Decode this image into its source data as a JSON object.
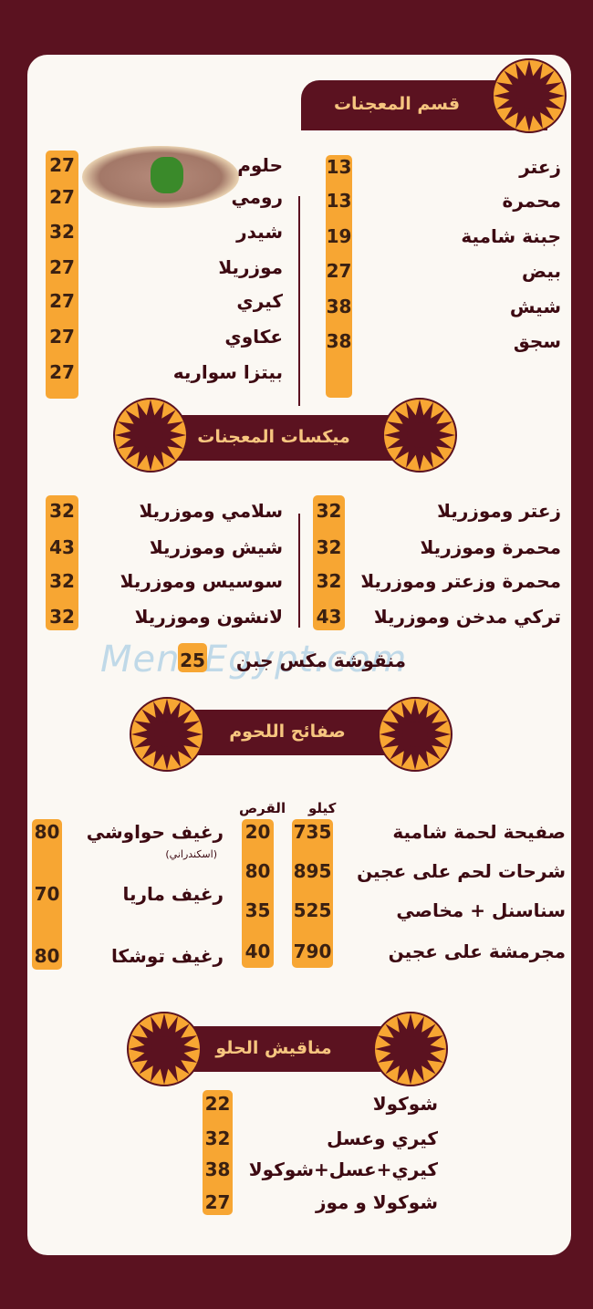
{
  "colors": {
    "background": "#5b1220",
    "accent": "#f7a633",
    "header_text": "#f6c57f",
    "card": "#fbf8f3"
  },
  "watermark": "MenuEgypt.com",
  "sections": {
    "pastries": {
      "title": "قسم المعجنات",
      "right": [
        {
          "name": "زعتر",
          "price": "13"
        },
        {
          "name": "محمرة",
          "price": "13"
        },
        {
          "name": "جبنة شامية",
          "price": "19"
        },
        {
          "name": "بيض",
          "price": "27"
        },
        {
          "name": "شيش",
          "price": "38"
        },
        {
          "name": "سجق",
          "price": "38"
        }
      ],
      "left": [
        {
          "name": "حلوم",
          "price": "27"
        },
        {
          "name": "رومي",
          "price": "27"
        },
        {
          "name": "شيدر",
          "price": "32"
        },
        {
          "name": "موزريلا",
          "price": "27"
        },
        {
          "name": "كيري",
          "price": "27"
        },
        {
          "name": "عكاوي",
          "price": "27"
        },
        {
          "name": "بيتزا سواريه",
          "price": "27"
        }
      ]
    },
    "mixes": {
      "title": "ميكسات المعجنات",
      "right": [
        {
          "name": "زعتر وموزريلا",
          "price": "32"
        },
        {
          "name": "محمرة وموزريلا",
          "price": "32"
        },
        {
          "name": "محمرة وزعتر وموزريلا",
          "price": "32"
        },
        {
          "name": "تركي مدخن وموزريلا",
          "price": "43"
        }
      ],
      "left": [
        {
          "name": "سلامي وموزريلا",
          "price": "32"
        },
        {
          "name": "شيش وموزريلا",
          "price": "43"
        },
        {
          "name": "سوسيس وموزريلا",
          "price": "32"
        },
        {
          "name": "لانشون وموزريلا",
          "price": "32"
        }
      ],
      "extra": {
        "name": "منقوشة مكس جبن",
        "price": "25"
      }
    },
    "meat": {
      "title": "صفائح اللحوم",
      "col_kilo": "كيلو",
      "col_disc": "القرص",
      "right": [
        {
          "name": "صفيحة لحمة شامية",
          "kilo": "735",
          "disc": "20"
        },
        {
          "name": "شرحات لحم على عجين",
          "kilo": "895",
          "disc": "80"
        },
        {
          "name": "سناسنل + مخاصي",
          "kilo": "525",
          "disc": "35"
        },
        {
          "name": "مجرمشة على عجين",
          "kilo": "790",
          "disc": "40"
        }
      ],
      "left": [
        {
          "name": "رغيف حواوشي",
          "note": "(اسكندراني)",
          "price": "80"
        },
        {
          "name": "رغيف ماريا",
          "price": "70"
        },
        {
          "name": "رغيف توشكا",
          "price": "80"
        }
      ]
    },
    "sweet": {
      "title": "مناقيش الحلو",
      "items": [
        {
          "name": "شوكولا",
          "price": "22"
        },
        {
          "name": "كيري وعسل",
          "price": "32"
        },
        {
          "name": "كيري+عسل+شوكولا",
          "price": "38"
        },
        {
          "name": "شوكولا و موز",
          "price": "27"
        }
      ]
    }
  }
}
